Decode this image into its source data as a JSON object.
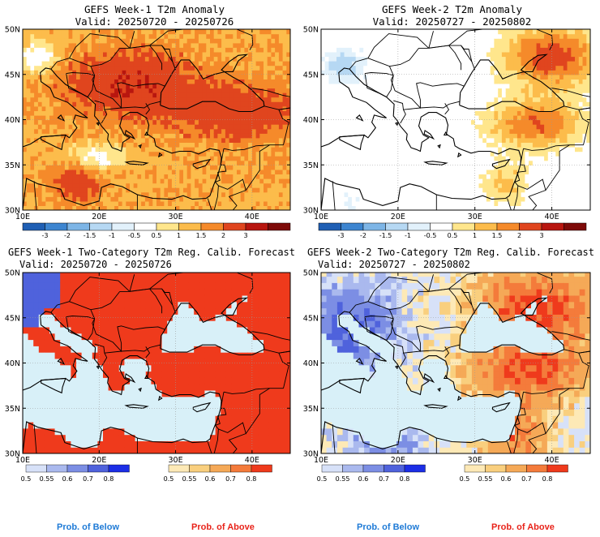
{
  "panels": [
    {
      "id": "p1",
      "title_line1": "GEFS Week-1 T2m Anomaly",
      "title_line2": "Valid: 20250720 - 20250726"
    },
    {
      "id": "p2",
      "title_line1": "GEFS Week-2 T2m Anomaly",
      "title_line2": "Valid: 20250727 - 20250802"
    },
    {
      "id": "p3",
      "title_line1": "GEFS Week-1 Two-Category T2m Reg. Calib. Forecast",
      "title_line2": "Valid: 20250720 - 20250726"
    },
    {
      "id": "p4",
      "title_line1": "GEFS Week-2 Two-Category T2m Reg. Calib. Forecast",
      "title_line2": "Valid: 20250727 - 20250802"
    }
  ],
  "axes": {
    "lat_ticks": [
      "50N",
      "45N",
      "40N",
      "35N",
      "30N"
    ],
    "lon_ticks": [
      "10E",
      "20E",
      "30E",
      "40E"
    ]
  },
  "anomaly_colorbar": {
    "labels": [
      "-3",
      "-2",
      "-1.5",
      "-1",
      "-0.5",
      "0.5",
      "1",
      "1.5",
      "2",
      "3"
    ],
    "colors": [
      "#1f5fb4",
      "#3d85d0",
      "#7db5e6",
      "#b6d8f3",
      "#e2f1fb",
      "#ffffff",
      "#ffe68c",
      "#fcbc4b",
      "#f58a2a",
      "#e0451e",
      "#b8160f",
      "#7d0a08"
    ]
  },
  "prob_colorbars": {
    "below": {
      "labels": [
        "0.5",
        "0.55",
        "0.6",
        "0.7",
        "0.8"
      ],
      "colors": [
        "#d7e1f8",
        "#aab9ee",
        "#7c8ee4",
        "#4f62dc",
        "#1c2ee6"
      ]
    },
    "above": {
      "labels": [
        "0.5",
        "0.55",
        "0.6",
        "0.7",
        "0.8"
      ],
      "colors": [
        "#fde9b6",
        "#f9cf7e",
        "#f5a957",
        "#f47b3b",
        "#ef3a1c"
      ]
    }
  },
  "legend": {
    "prob_below": "Prob. of Below",
    "prob_above": "Prob. of Above",
    "below_color": "#1e7ad6",
    "above_color": "#e8231a"
  }
}
